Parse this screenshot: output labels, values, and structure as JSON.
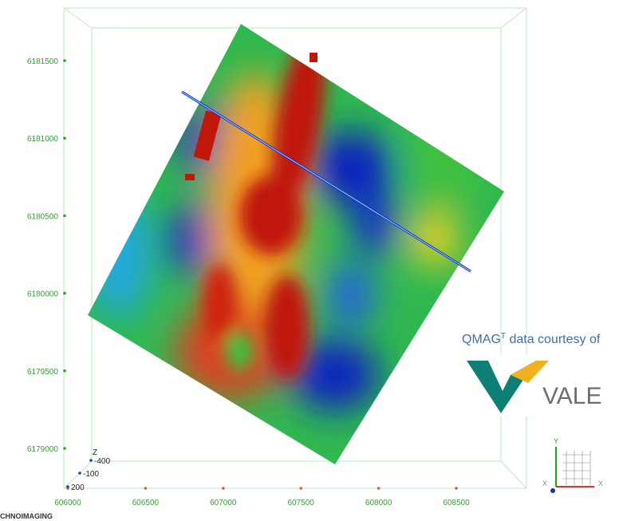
{
  "y_axis": {
    "labels": [
      "6181500",
      "6181000",
      "6180500",
      "6180000",
      "6179500",
      "6179000"
    ]
  },
  "x_axis": {
    "labels": [
      "606000",
      "606500",
      "607000",
      "607500",
      "608000",
      "608500"
    ]
  },
  "z_axis": {
    "title": "Z",
    "labels": [
      "-400",
      "-100",
      "200"
    ]
  },
  "caption": {
    "text": "QMAG",
    "superscript": "T",
    "rest": " data courtesy of"
  },
  "logo": {
    "text": "VALE"
  },
  "gizmo": {
    "y": "Y",
    "x_left": "X",
    "x_right": "X"
  },
  "footer": {
    "brand": "CHNOIMAGING"
  }
}
